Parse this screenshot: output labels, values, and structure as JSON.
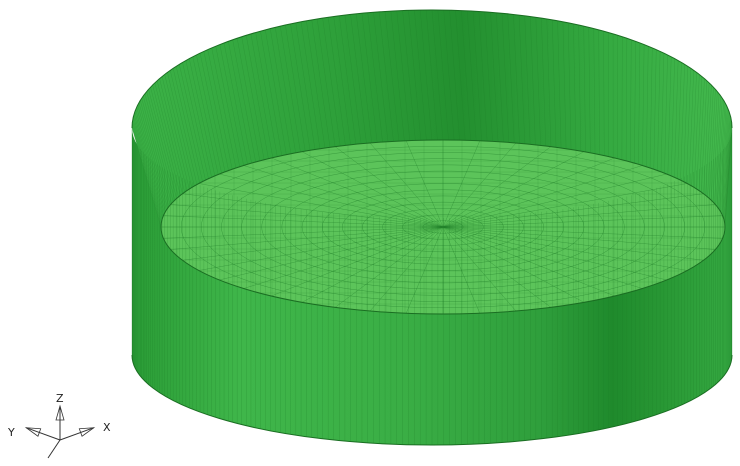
{
  "model": {
    "description_colors": {
      "wall_light": "#3fb34a",
      "wall_mid": "#2ea43b",
      "wall_dark": "#1f8a2c",
      "floor": "#5cc45a",
      "mesh_line": "#1c7a26",
      "rim_line": "#155f1d"
    },
    "mesh": {
      "wall_segments": 160,
      "wall_rows": 1,
      "floor_rings": 14,
      "floor_spokes": 48
    }
  },
  "triad": {
    "x_label": "X",
    "y_label": "Y",
    "z_label": "Z"
  }
}
